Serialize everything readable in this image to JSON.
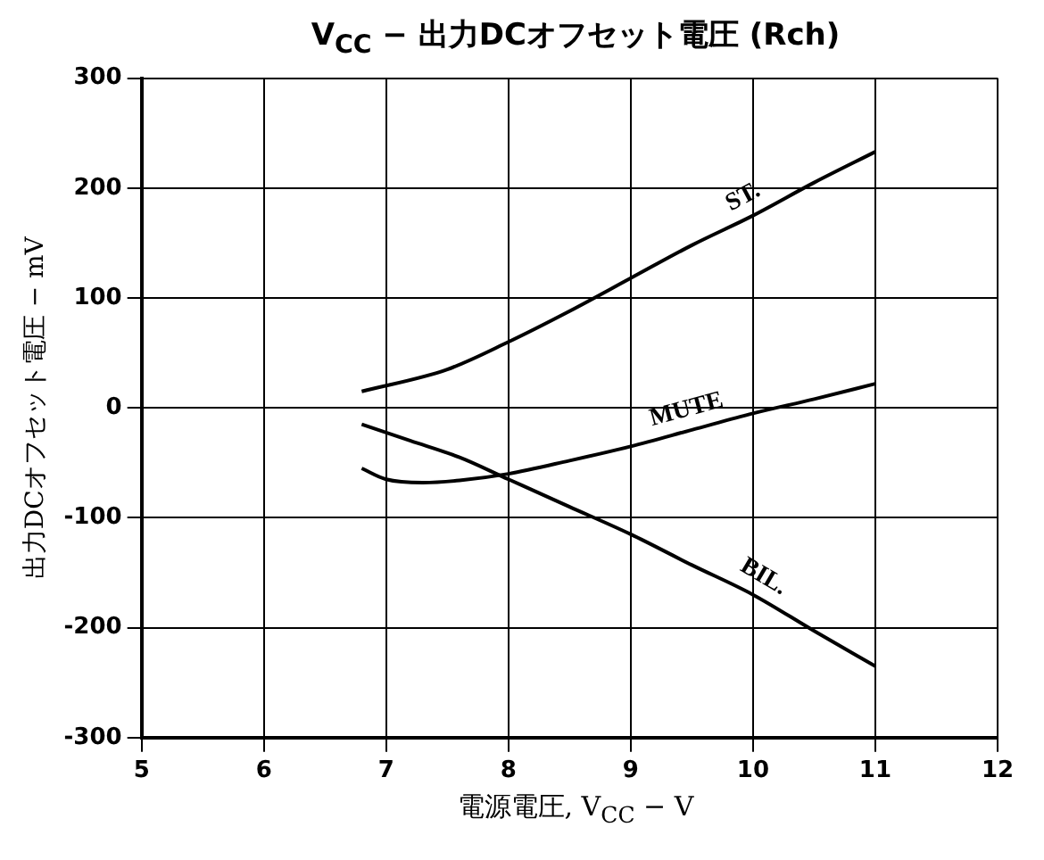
{
  "chart_data": {
    "type": "line",
    "title": "V$_{CC}$ − 出力DCオフセット電圧 (Rch)",
    "xlabel": "電源電圧, V$_{CC}$ − V",
    "ylabel": "出力DCオフセット電圧 − mV",
    "xlim": [
      5,
      12
    ],
    "xticks": [
      5,
      6,
      7,
      8,
      9,
      10,
      11,
      12
    ],
    "ylim": [
      -300,
      300
    ],
    "yticks": [
      -300,
      -200,
      -100,
      0,
      100,
      200,
      300
    ],
    "grid": true,
    "legend": false,
    "marker": "none",
    "line_style": "solid",
    "series": [
      {
        "name": "ST.",
        "color": "#000000",
        "x": [
          6.8,
          7.5,
          8,
          8.5,
          9,
          9.5,
          10,
          10.5,
          11
        ],
        "values": [
          15,
          35,
          60,
          88,
          118,
          148,
          175,
          205,
          233
        ]
      },
      {
        "name": "MUTE",
        "color": "#000000",
        "x": [
          6.8,
          7,
          7.3,
          7.6,
          8,
          8.5,
          9,
          9.5,
          10,
          10.5,
          11
        ],
        "values": [
          -55,
          -65,
          -68,
          -66,
          -60,
          -48,
          -35,
          -20,
          -5,
          8,
          22
        ]
      },
      {
        "name": "BIL.",
        "color": "#000000",
        "x": [
          6.8,
          7.2,
          7.6,
          8,
          8.5,
          9,
          9.5,
          10,
          10.5,
          11
        ],
        "values": [
          -15,
          -30,
          -45,
          -65,
          -90,
          -115,
          -143,
          -170,
          -203,
          -235
        ]
      }
    ]
  }
}
